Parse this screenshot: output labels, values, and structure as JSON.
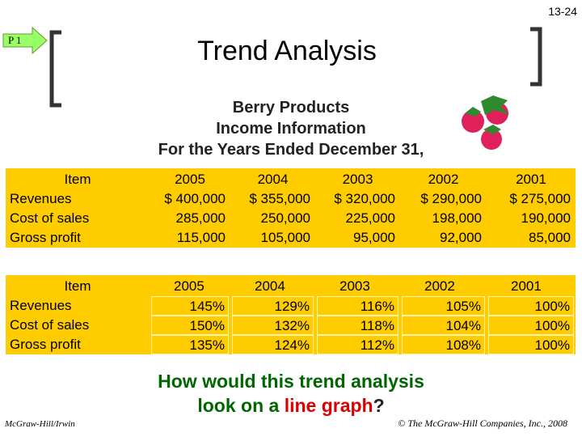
{
  "page_number": "13-24",
  "marker": "P 1",
  "title": "Trend Analysis",
  "subtitle": [
    "Berry Products",
    "Income Information",
    "For the Years Ended December 31,"
  ],
  "table1": {
    "header": [
      "Item",
      "2005",
      "2004",
      "2003",
      "2002",
      "2001"
    ],
    "rows": [
      [
        "Revenues",
        "$ 400,000",
        "$ 355,000",
        "$ 320,000",
        "$ 290,000",
        "$ 275,000"
      ],
      [
        "Cost of sales",
        "285,000",
        "250,000",
        "225,000",
        "198,000",
        "190,000"
      ],
      [
        "Gross profit",
        "115,000",
        "105,000",
        "95,000",
        "92,000",
        "85,000"
      ]
    ]
  },
  "table2": {
    "header": [
      "Item",
      "2005",
      "2004",
      "2003",
      "2002",
      "2001"
    ],
    "rows": [
      [
        "Revenues",
        "145%",
        "129%",
        "116%",
        "105%",
        "100%"
      ],
      [
        "Cost of sales",
        "150%",
        "132%",
        "118%",
        "104%",
        "100%"
      ],
      [
        "Gross profit",
        "135%",
        "124%",
        "112%",
        "108%",
        "100%"
      ]
    ]
  },
  "question": {
    "line1": "How would this trend analysis",
    "line2_start": "look on a ",
    "highlight": "line graph",
    "end": "?"
  },
  "footer": {
    "left": "McGraw-Hill/Irwin",
    "right": "© The McGraw-Hill Companies, Inc., 2008"
  }
}
